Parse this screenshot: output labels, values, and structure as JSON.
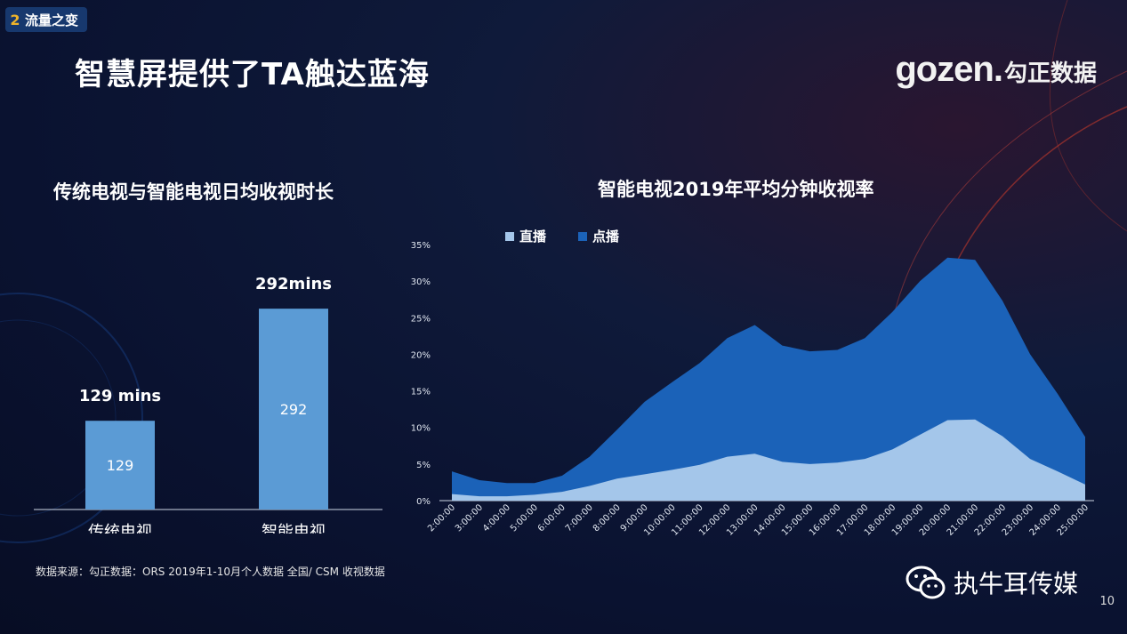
{
  "section": {
    "number": "2",
    "label": "流量之变"
  },
  "page_title": "智慧屏提供了TA触达蓝海",
  "logo": {
    "latin": "gozen.",
    "cjk": "勾正数据"
  },
  "source_note": "数据来源：勾正数据：ORS 2019年1-10月个人数据 全国/ CSM 收视数据",
  "watermark": "执牛耳传媒",
  "page_number": "10",
  "colors": {
    "bar": "#5b9bd5",
    "live": "#a4c6ea",
    "vod": "#1b62b8"
  },
  "chart_data": [
    {
      "type": "bar",
      "title": "传统电视与智能电视日均收视时长",
      "categories": [
        "传统电视",
        "智能电视"
      ],
      "values": [
        129,
        292
      ],
      "value_labels": [
        "129",
        "292"
      ],
      "top_labels": [
        "129 mins",
        "292mins"
      ],
      "xlabel": "",
      "ylabel": "",
      "ylim": [
        0,
        340
      ]
    },
    {
      "type": "area",
      "title": "智能电视2019年平均分钟收视率",
      "legend_position": "top-left",
      "x": [
        "2:00:00",
        "3:00:00",
        "4:00:00",
        "5:00:00",
        "6:00:00",
        "7:00:00",
        "8:00:00",
        "9:00:00",
        "10:00:00",
        "11:00:00",
        "12:00:00",
        "13:00:00",
        "14:00:00",
        "15:00:00",
        "16:00:00",
        "17:00:00",
        "18:00:00",
        "19:00:00",
        "20:00:00",
        "21:00:00",
        "22:00:00",
        "23:00:00",
        "24:00:00",
        "25:00:00"
      ],
      "y_ticks": [
        "0%",
        "5%",
        "10%",
        "15%",
        "20%",
        "25%",
        "30%",
        "35%"
      ],
      "ylim": [
        0,
        35
      ],
      "stacked": false,
      "series": [
        {
          "name": "点播",
          "values": [
            4.0,
            2.8,
            2.4,
            2.4,
            3.4,
            6.0,
            9.7,
            13.5,
            16.2,
            18.8,
            22.2,
            24.0,
            21.2,
            20.4,
            20.6,
            22.2,
            25.8,
            30.0,
            33.2,
            32.9,
            27.3,
            20.0,
            14.6,
            8.7
          ]
        },
        {
          "name": "直播",
          "values": [
            0.9,
            0.6,
            0.6,
            0.8,
            1.2,
            2.0,
            3.0,
            3.6,
            4.2,
            4.9,
            6.0,
            6.4,
            5.3,
            5.0,
            5.2,
            5.7,
            7.0,
            9.0,
            11.0,
            11.1,
            8.8,
            5.7,
            4.0,
            2.2
          ]
        }
      ]
    }
  ]
}
